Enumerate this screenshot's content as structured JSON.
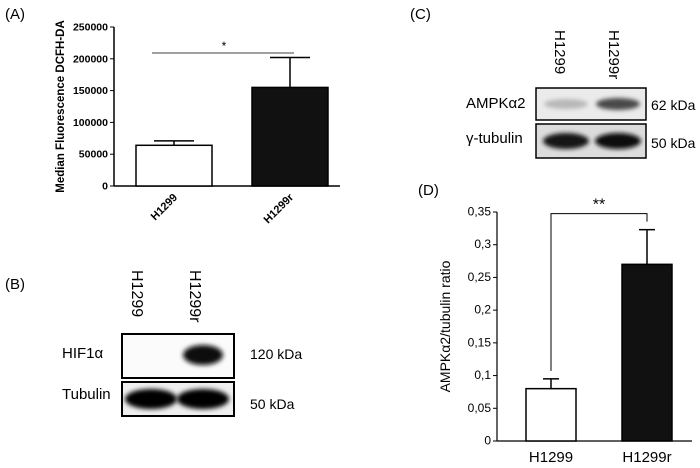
{
  "panels": {
    "a": "(A)",
    "b": "(B)",
    "c": "(C)",
    "d": "(D)"
  },
  "chart_data": [
    {
      "type": "bar",
      "ylabel": "Median Fluorescence DCFH-DA",
      "xlabel": "",
      "categories": [
        "H1299",
        "H1299r"
      ],
      "values": [
        64000,
        155000
      ],
      "errors": [
        7000,
        47000
      ],
      "ylim": [
        0,
        250000
      ],
      "yticks": [
        "0",
        "50000",
        "100000",
        "150000",
        "200000",
        "250000"
      ],
      "bar_colors": [
        "#ffffff",
        "#111111"
      ],
      "significance": "*",
      "grid": false
    },
    {
      "type": "bar",
      "ylabel": "AMPKα2/tubulin ratio",
      "xlabel": "",
      "categories": [
        "H1299",
        "H1299r"
      ],
      "values": [
        0.08,
        0.27
      ],
      "errors": [
        0.015,
        0.053
      ],
      "ylim": [
        0,
        0.35
      ],
      "yticks": [
        "0",
        "0,05",
        "0,1",
        "0,15",
        "0,2",
        "0,25",
        "0,3",
        "0,35"
      ],
      "bar_colors": [
        "#ffffff",
        "#111111"
      ],
      "significance": "**",
      "grid": false
    }
  ],
  "blot_b": {
    "lanes": [
      "H1299",
      "H1299r"
    ],
    "rows": [
      {
        "label": "HIF1α",
        "kda": "120 kDa"
      },
      {
        "label": "Tubulin",
        "kda": "50 kDa"
      }
    ]
  },
  "blot_c": {
    "lanes": [
      "H1299",
      "H1299r"
    ],
    "rows": [
      {
        "label": "AMPKα2",
        "kda": "62 kDa"
      },
      {
        "label": "γ-tubulin",
        "kda": "50 kDa"
      }
    ]
  }
}
